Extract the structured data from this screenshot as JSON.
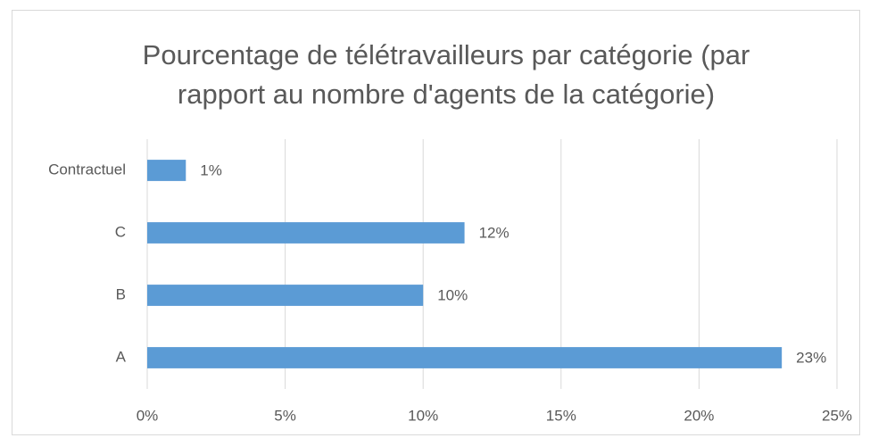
{
  "chart_data": {
    "type": "barh",
    "title": [
      "Pourcentage de télétravailleurs par catégorie (par",
      "rapport au nombre d'agents de la catégorie)"
    ],
    "categories": [
      "Contractuel",
      "C",
      "B",
      "A"
    ],
    "values": [
      1.4,
      11.5,
      10.0,
      23.0
    ],
    "value_labels": [
      "1%",
      "12%",
      "10%",
      "23%"
    ],
    "color": "#5b9bd5",
    "xlim": [
      0,
      25
    ],
    "xticks": [
      {
        "value": 0,
        "label": "0%"
      },
      {
        "value": 5,
        "label": "5%"
      },
      {
        "value": 10,
        "label": "10%"
      },
      {
        "value": 15,
        "label": "15%"
      },
      {
        "value": 20,
        "label": "20%"
      },
      {
        "value": 25,
        "label": "25%"
      }
    ],
    "grid": true
  }
}
